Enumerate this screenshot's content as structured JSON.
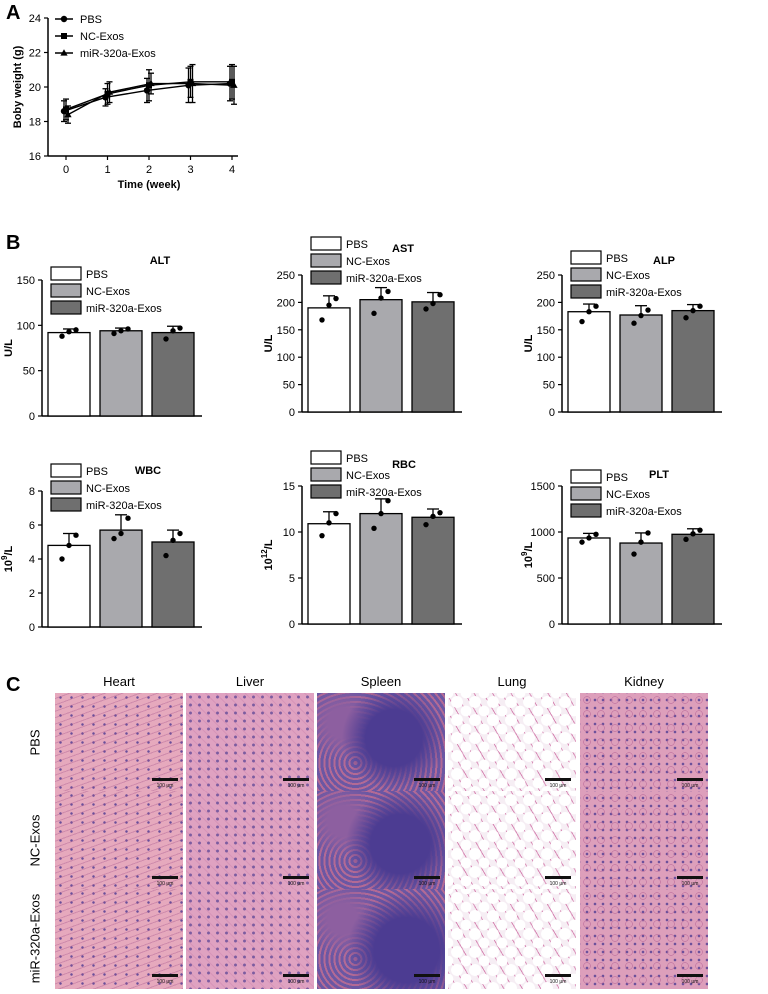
{
  "panels": {
    "A": "A",
    "B": "B",
    "C": "C"
  },
  "chart_data": [
    {
      "id": "A",
      "type": "line",
      "title": "",
      "xlabel": "Time (week)",
      "ylabel": "Boby weight (g)",
      "x": [
        0,
        1,
        2,
        3,
        4
      ],
      "xlim": [
        0,
        4
      ],
      "ylim": [
        16,
        24
      ],
      "yticks": [
        16,
        18,
        20,
        22,
        24
      ],
      "legend_position": "top-left",
      "series": [
        {
          "name": "PBS",
          "marker": "circle",
          "values": [
            18.6,
            19.4,
            19.8,
            20.1,
            20.2
          ],
          "err": [
            0.6,
            0.5,
            0.7,
            1.0,
            1.0
          ]
        },
        {
          "name": "NC-Exos",
          "marker": "square",
          "values": [
            18.7,
            19.6,
            20.1,
            20.3,
            20.3
          ],
          "err": [
            0.6,
            0.6,
            0.9,
            0.9,
            1.0
          ]
        },
        {
          "name": "miR-320a-Exos",
          "marker": "triangle",
          "values": [
            18.4,
            19.7,
            20.2,
            20.2,
            20.1
          ],
          "err": [
            0.5,
            0.6,
            0.6,
            1.1,
            1.1
          ]
        }
      ]
    },
    {
      "id": "ALT",
      "type": "bar",
      "title": "ALT",
      "ylabel": "U/L",
      "ylim": [
        0,
        150
      ],
      "yticks": [
        0,
        50,
        100,
        150
      ],
      "yticklabels": [
        "0",
        "50",
        "100",
        "150"
      ],
      "categories": [
        "PBS",
        "NC-Exos",
        "miR-320a-Exos"
      ],
      "values": [
        92,
        94,
        92
      ],
      "err": [
        4,
        3,
        7
      ],
      "points": [
        [
          88,
          93,
          95
        ],
        [
          91,
          94,
          96
        ],
        [
          85,
          94,
          97
        ]
      ],
      "legend_position": "top-left"
    },
    {
      "id": "AST",
      "type": "bar",
      "title": "AST",
      "ylabel": "U/L",
      "ylim": [
        0,
        250
      ],
      "yticks": [
        0,
        50,
        100,
        150,
        200,
        250
      ],
      "yticklabels": [
        "0",
        "50",
        "100",
        "150",
        "200",
        "250"
      ],
      "categories": [
        "PBS",
        "NC-Exos",
        "miR-320a-Exos"
      ],
      "values": [
        190,
        205,
        201
      ],
      "err": [
        22,
        22,
        17
      ],
      "points": [
        [
          168,
          195,
          207
        ],
        [
          180,
          208,
          220
        ],
        [
          188,
          198,
          214
        ]
      ],
      "legend_position": "top-left"
    },
    {
      "id": "ALP",
      "type": "bar",
      "title": "ALP",
      "ylabel": "U/L",
      "ylim": [
        0,
        250
      ],
      "yticks": [
        0,
        50,
        100,
        150,
        200,
        250
      ],
      "yticklabels": [
        "0",
        "50",
        "100",
        "150",
        "200",
        "250"
      ],
      "categories": [
        "PBS",
        "NC-Exos",
        "miR-320a-Exos"
      ],
      "values": [
        183,
        177,
        185
      ],
      "err": [
        14,
        17,
        11
      ],
      "points": [
        [
          165,
          183,
          193
        ],
        [
          162,
          176,
          186
        ],
        [
          172,
          185,
          193
        ]
      ],
      "legend_position": "top-left"
    },
    {
      "id": "WBC",
      "type": "bar",
      "title": "WBC",
      "ylabel": "10^9/L",
      "ylim": [
        0,
        8
      ],
      "yticks": [
        0,
        2,
        4,
        6,
        8
      ],
      "yticklabels": [
        "0",
        "2",
        "4",
        "6",
        "8"
      ],
      "categories": [
        "PBS",
        "NC-Exos",
        "miR-320a-Exos"
      ],
      "values": [
        4.8,
        5.7,
        5.0
      ],
      "err": [
        0.7,
        0.9,
        0.7
      ],
      "points": [
        [
          4.0,
          4.8,
          5.4
        ],
        [
          5.2,
          5.5,
          6.4
        ],
        [
          4.2,
          5.1,
          5.5
        ]
      ],
      "legend_position": "top-left"
    },
    {
      "id": "RBC",
      "type": "bar",
      "title": "RBC",
      "ylabel": "10^12/L",
      "ylim": [
        0,
        15
      ],
      "yticks": [
        0,
        5,
        10,
        15
      ],
      "yticklabels": [
        "0",
        "5",
        "10",
        "15"
      ],
      "categories": [
        "PBS",
        "NC-Exos",
        "miR-320a-Exos"
      ],
      "values": [
        10.9,
        12.0,
        11.6
      ],
      "err": [
        1.3,
        1.6,
        0.9
      ],
      "points": [
        [
          9.6,
          11.0,
          12.0
        ],
        [
          10.4,
          12.0,
          13.4
        ],
        [
          10.8,
          11.7,
          12.1
        ]
      ],
      "legend_position": "top-left"
    },
    {
      "id": "PLT",
      "type": "bar",
      "title": "PLT",
      "ylabel": "10^9/L",
      "ylim": [
        0,
        1500
      ],
      "yticks": [
        0,
        500,
        1000,
        1500
      ],
      "yticklabels": [
        "0",
        "500",
        "1000",
        "1500"
      ],
      "categories": [
        "PBS",
        "NC-Exos",
        "miR-320a-Exos"
      ],
      "values": [
        935,
        880,
        975
      ],
      "err": [
        50,
        110,
        60
      ],
      "points": [
        [
          890,
          935,
          975
        ],
        [
          760,
          890,
          990
        ],
        [
          920,
          980,
          1020
        ]
      ],
      "legend_position": "top-left"
    }
  ],
  "bar_colors": [
    "#ffffff",
    "#a9a9ad",
    "#6f6f6f"
  ],
  "histology": {
    "columns": [
      "Heart",
      "Liver",
      "Spleen",
      "Lung",
      "Kidney"
    ],
    "rows": [
      "PBS",
      "NC-Exos",
      "miR-320a-Exos"
    ],
    "scalebar_label": "100 μm",
    "tile_colors": {
      "Heart": "#e6a9bd",
      "Liver": "#dfa2c1",
      "Spleen": "#6e5ca6",
      "Lung": "#f6eef4",
      "Kidney": "#dd9fbb"
    }
  }
}
